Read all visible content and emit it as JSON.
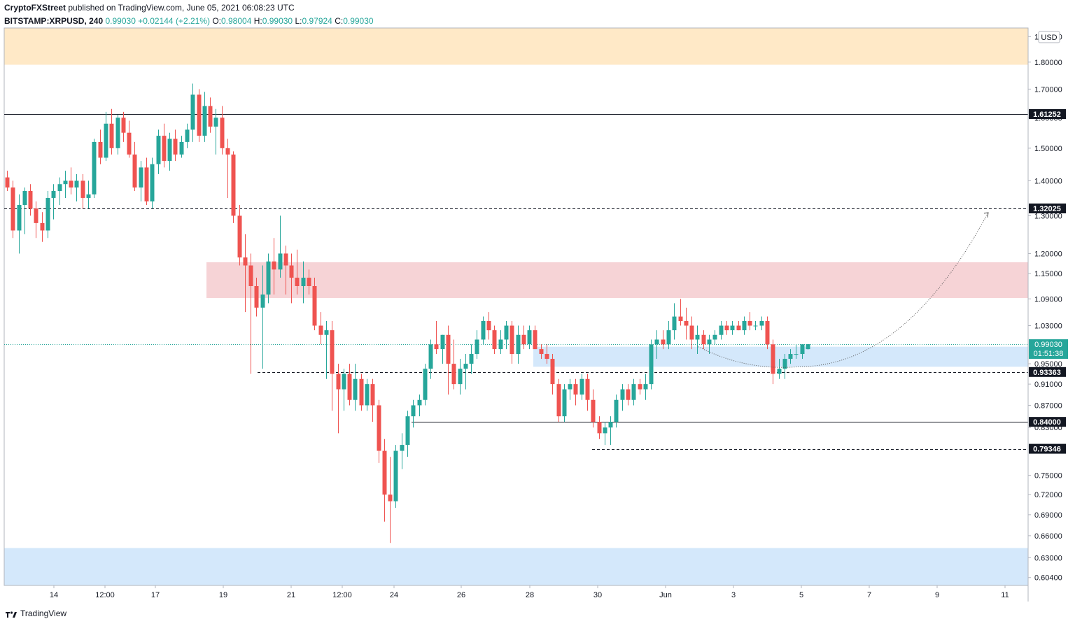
{
  "header": {
    "publisher": "CryptoFXStreet",
    "published_text": "published on TradingView.com, June 05, 2021 06:08:23 UTC",
    "symbol": "BITSTAMP:XRPUSD, 240",
    "last": "0.99030",
    "change": "+0.02144 (+2.21%)",
    "o_label": "O:",
    "o_value": "0.98004",
    "h_label": "H:",
    "h_value": "0.99030",
    "l_label": "L:",
    "l_value": "0.97924",
    "c_label": "C:",
    "c_value": "0.99030"
  },
  "footer": {
    "brand": "TradingView",
    "logo_icon": "tradingview-logo-icon"
  },
  "colors": {
    "up": "#26a69a",
    "down": "#ef5350",
    "zone_orange": "#ffe9c7",
    "zone_red": "#f6d3d6",
    "zone_blue": "#d4e8fb"
  },
  "chart_data": {
    "type": "candlestick",
    "currency": "USD",
    "y_scale": "log",
    "ylim": [
      0.594,
      1.935
    ],
    "x_ticks": [
      "14",
      "12:00",
      "17",
      "19",
      "21",
      "12:00",
      "24",
      "26",
      "28",
      "30",
      "Jun",
      "3",
      "5",
      "7",
      "9",
      "11"
    ],
    "y_ticks": [
      "1.90000",
      "1.80000",
      "1.70000",
      "1.60000",
      "1.50000",
      "1.40000",
      "1.30000",
      "1.20000",
      "1.15000",
      "1.09000",
      "1.03000",
      "0.95000",
      "0.91000",
      "0.87000",
      "0.83000",
      "0.75000",
      "0.72000",
      "0.69000",
      "0.66000",
      "0.63000",
      "0.60400"
    ],
    "level_labels": [
      {
        "value": 1.61252,
        "text": "1.61252",
        "style": "solid"
      },
      {
        "value": 1.32025,
        "text": "1.32025",
        "style": "dashed"
      },
      {
        "value": 0.93363,
        "text": "0.93363",
        "style": "dashed"
      },
      {
        "value": 0.84,
        "text": "0.84000",
        "style": "solid"
      },
      {
        "value": 0.79346,
        "text": "0.79346",
        "style": "dashed"
      }
    ],
    "last_price": {
      "value": 0.9903,
      "text": "0.99030",
      "countdown": "01:51:38"
    },
    "zones": [
      {
        "name": "supply-orange",
        "from": 1.79,
        "to": 1.935
      },
      {
        "name": "supply-red",
        "from": 1.092,
        "to": 1.178
      },
      {
        "name": "demand-blue",
        "from": 0.944,
        "to": 0.985
      },
      {
        "name": "demand-blue-low",
        "from": 0.594,
        "to": 0.643
      }
    ],
    "candles": [
      [
        1.41,
        1.43,
        1.37,
        1.38
      ],
      [
        1.38,
        1.4,
        1.24,
        1.26
      ],
      [
        1.26,
        1.36,
        1.2,
        1.33
      ],
      [
        1.33,
        1.38,
        1.25,
        1.37
      ],
      [
        1.37,
        1.39,
        1.3,
        1.32
      ],
      [
        1.32,
        1.34,
        1.24,
        1.28
      ],
      [
        1.28,
        1.31,
        1.23,
        1.26
      ],
      [
        1.26,
        1.37,
        1.24,
        1.35
      ],
      [
        1.35,
        1.39,
        1.29,
        1.37
      ],
      [
        1.37,
        1.41,
        1.33,
        1.39
      ],
      [
        1.39,
        1.43,
        1.35,
        1.4
      ],
      [
        1.4,
        1.44,
        1.36,
        1.38
      ],
      [
        1.38,
        1.42,
        1.34,
        1.4
      ],
      [
        1.4,
        1.42,
        1.32,
        1.35
      ],
      [
        1.35,
        1.4,
        1.32,
        1.36
      ],
      [
        1.36,
        1.53,
        1.35,
        1.52
      ],
      [
        1.52,
        1.56,
        1.45,
        1.47
      ],
      [
        1.47,
        1.62,
        1.46,
        1.58
      ],
      [
        1.58,
        1.63,
        1.48,
        1.5
      ],
      [
        1.5,
        1.61,
        1.48,
        1.6
      ],
      [
        1.6,
        1.62,
        1.52,
        1.55
      ],
      [
        1.55,
        1.59,
        1.47,
        1.48
      ],
      [
        1.48,
        1.52,
        1.37,
        1.38
      ],
      [
        1.38,
        1.46,
        1.34,
        1.44
      ],
      [
        1.44,
        1.47,
        1.33,
        1.34
      ],
      [
        1.34,
        1.47,
        1.32,
        1.45
      ],
      [
        1.45,
        1.56,
        1.42,
        1.54
      ],
      [
        1.54,
        1.58,
        1.44,
        1.46
      ],
      [
        1.46,
        1.55,
        1.43,
        1.53
      ],
      [
        1.53,
        1.56,
        1.46,
        1.48
      ],
      [
        1.48,
        1.54,
        1.47,
        1.52
      ],
      [
        1.52,
        1.58,
        1.5,
        1.56
      ],
      [
        1.56,
        1.72,
        1.52,
        1.68
      ],
      [
        1.68,
        1.7,
        1.52,
        1.54
      ],
      [
        1.54,
        1.69,
        1.52,
        1.64
      ],
      [
        1.64,
        1.67,
        1.55,
        1.57
      ],
      [
        1.57,
        1.63,
        1.48,
        1.6
      ],
      [
        1.6,
        1.64,
        1.48,
        1.5
      ],
      [
        1.5,
        1.53,
        1.35,
        1.48
      ],
      [
        1.48,
        1.49,
        1.28,
        1.3
      ],
      [
        1.3,
        1.33,
        1.17,
        1.19
      ],
      [
        1.19,
        1.25,
        1.06,
        1.17
      ],
      [
        1.17,
        1.2,
        0.93,
        1.12
      ],
      [
        1.12,
        1.14,
        1.05,
        1.07
      ],
      [
        1.07,
        1.17,
        0.94,
        1.1
      ],
      [
        1.1,
        1.2,
        1.08,
        1.18
      ],
      [
        1.18,
        1.24,
        1.1,
        1.16
      ],
      [
        1.16,
        1.3,
        1.14,
        1.2
      ],
      [
        1.2,
        1.22,
        1.1,
        1.17
      ],
      [
        1.17,
        1.2,
        1.08,
        1.14
      ],
      [
        1.14,
        1.21,
        1.1,
        1.12
      ],
      [
        1.12,
        1.18,
        1.08,
        1.14
      ],
      [
        1.14,
        1.16,
        1.1,
        1.12
      ],
      [
        1.12,
        1.14,
        1.02,
        1.03
      ],
      [
        1.03,
        1.06,
        0.99,
        1.01
      ],
      [
        1.01,
        1.04,
        0.92,
        1.02
      ],
      [
        1.02,
        1.04,
        0.86,
        0.93
      ],
      [
        0.93,
        0.95,
        0.82,
        0.9
      ],
      [
        0.9,
        0.94,
        0.86,
        0.93
      ],
      [
        0.93,
        0.95,
        0.87,
        0.88
      ],
      [
        0.88,
        0.95,
        0.86,
        0.92
      ],
      [
        0.92,
        0.93,
        0.86,
        0.87
      ],
      [
        0.87,
        0.92,
        0.86,
        0.91
      ],
      [
        0.91,
        0.92,
        0.84,
        0.87
      ],
      [
        0.87,
        0.88,
        0.77,
        0.79
      ],
      [
        0.79,
        0.81,
        0.68,
        0.72
      ],
      [
        0.72,
        0.78,
        0.65,
        0.71
      ],
      [
        0.71,
        0.8,
        0.7,
        0.79
      ],
      [
        0.79,
        0.82,
        0.76,
        0.8
      ],
      [
        0.8,
        0.86,
        0.78,
        0.85
      ],
      [
        0.85,
        0.88,
        0.83,
        0.87
      ],
      [
        0.87,
        0.89,
        0.85,
        0.88
      ],
      [
        0.88,
        0.95,
        0.87,
        0.94
      ],
      [
        0.94,
        1.0,
        0.92,
        0.99
      ],
      [
        0.99,
        1.04,
        0.97,
        0.98
      ],
      [
        0.98,
        1.01,
        0.95,
        1.01
      ],
      [
        1.01,
        1.03,
        0.89,
        0.95
      ],
      [
        0.95,
        1.0,
        0.9,
        0.91
      ],
      [
        0.91,
        0.96,
        0.89,
        0.94
      ],
      [
        0.94,
        0.97,
        0.9,
        0.95
      ],
      [
        0.95,
        0.99,
        0.93,
        0.97
      ],
      [
        0.97,
        1.02,
        0.96,
        1.0
      ],
      [
        1.0,
        1.05,
        0.99,
        1.04
      ],
      [
        1.04,
        1.06,
        1.0,
        1.02
      ],
      [
        1.02,
        1.03,
        0.97,
        0.98
      ],
      [
        0.98,
        1.02,
        0.97,
        1.0
      ],
      [
        1.0,
        1.04,
        0.98,
        1.03
      ],
      [
        1.03,
        1.04,
        0.95,
        0.97
      ],
      [
        0.97,
        1.03,
        0.95,
        1.01
      ],
      [
        1.01,
        1.03,
        0.98,
        0.99
      ],
      [
        0.99,
        1.03,
        0.98,
        1.02
      ],
      [
        1.02,
        1.03,
        0.98,
        0.98
      ],
      [
        0.98,
        0.99,
        0.96,
        0.97
      ],
      [
        0.97,
        0.99,
        0.95,
        0.96
      ],
      [
        0.96,
        0.97,
        0.89,
        0.91
      ],
      [
        0.91,
        0.92,
        0.84,
        0.85
      ],
      [
        0.85,
        0.91,
        0.84,
        0.9
      ],
      [
        0.9,
        0.92,
        0.88,
        0.91
      ],
      [
        0.91,
        0.92,
        0.87,
        0.89
      ],
      [
        0.89,
        0.93,
        0.88,
        0.92
      ],
      [
        0.92,
        0.93,
        0.86,
        0.88
      ],
      [
        0.88,
        0.9,
        0.83,
        0.84
      ],
      [
        0.84,
        0.85,
        0.81,
        0.82
      ],
      [
        0.82,
        0.84,
        0.8,
        0.83
      ],
      [
        0.83,
        0.85,
        0.8,
        0.84
      ],
      [
        0.84,
        0.89,
        0.83,
        0.88
      ],
      [
        0.88,
        0.91,
        0.86,
        0.9
      ],
      [
        0.9,
        0.91,
        0.87,
        0.88
      ],
      [
        0.88,
        0.92,
        0.87,
        0.91
      ],
      [
        0.91,
        0.92,
        0.89,
        0.9
      ],
      [
        0.9,
        0.93,
        0.88,
        0.91
      ],
      [
        0.91,
        1.0,
        0.9,
        0.99
      ],
      [
        0.99,
        1.02,
        0.96,
        1.0
      ],
      [
        1.0,
        1.02,
        0.98,
        0.99
      ],
      [
        0.99,
        1.04,
        0.98,
        1.02
      ],
      [
        1.02,
        1.08,
        1.0,
        1.05
      ],
      [
        1.05,
        1.09,
        1.03,
        1.04
      ],
      [
        1.04,
        1.07,
        1.0,
        1.03
      ],
      [
        1.03,
        1.05,
        0.98,
        1.0
      ],
      [
        1.0,
        1.03,
        0.97,
        1.01
      ],
      [
        1.01,
        1.02,
        0.98,
        0.99
      ],
      [
        0.99,
        1.01,
        0.97,
        1.0
      ],
      [
        1.0,
        1.02,
        0.99,
        1.01
      ],
      [
        1.01,
        1.04,
        1.0,
        1.03
      ],
      [
        1.03,
        1.04,
        1.01,
        1.02
      ],
      [
        1.02,
        1.04,
        1.01,
        1.03
      ],
      [
        1.03,
        1.04,
        1.02,
        1.02
      ],
      [
        1.02,
        1.05,
        1.01,
        1.04
      ],
      [
        1.04,
        1.06,
        1.02,
        1.03
      ],
      [
        1.03,
        1.04,
        1.02,
        1.03
      ],
      [
        1.03,
        1.05,
        1.02,
        1.04
      ],
      [
        1.04,
        1.05,
        0.98,
        0.99
      ],
      [
        0.99,
        1.0,
        0.91,
        0.93
      ],
      [
        0.93,
        0.96,
        0.92,
        0.94
      ],
      [
        0.94,
        0.97,
        0.92,
        0.96
      ],
      [
        0.96,
        0.98,
        0.95,
        0.97
      ],
      [
        0.97,
        0.99,
        0.96,
        0.97
      ],
      [
        0.97,
        0.99,
        0.96,
        0.99
      ],
      [
        0.98,
        0.99,
        0.979,
        0.9903
      ]
    ],
    "projection": {
      "style": "dotted-curve",
      "from": 0.985,
      "low": 0.944,
      "to": 1.32025
    }
  }
}
